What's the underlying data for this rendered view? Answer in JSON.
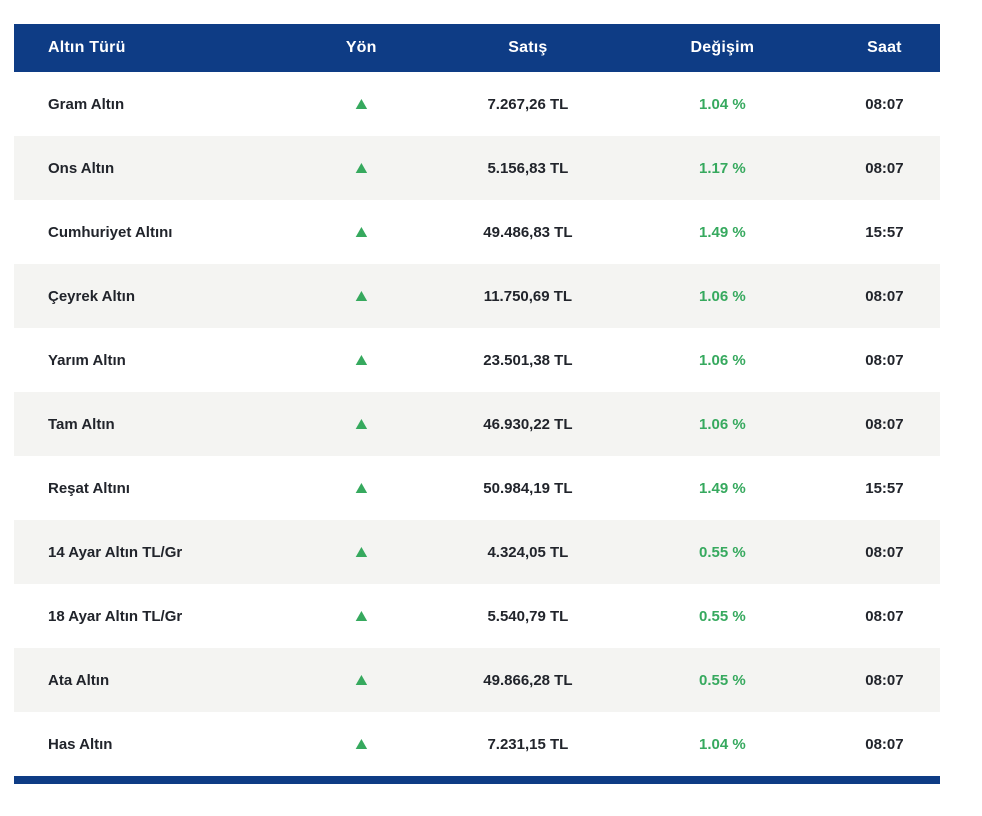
{
  "colors": {
    "header_bg": "#0e3c85",
    "row_alt_bg": "#f4f4f2",
    "positive_green": "#36a95e",
    "text": "#21242b"
  },
  "table": {
    "headers": {
      "type": "Altın Türü",
      "direction": "Yön",
      "price": "Satış",
      "change": "Değişim",
      "time": "Saat"
    },
    "up_icon": "▲",
    "rows": [
      {
        "name": "Gram Altın",
        "direction": "up",
        "price": "7.267,26 TL",
        "change": "1.04 %",
        "time": "08:07"
      },
      {
        "name": "Ons Altın",
        "direction": "up",
        "price": "5.156,83 TL",
        "change": "1.17 %",
        "time": "08:07"
      },
      {
        "name": "Cumhuriyet Altını",
        "direction": "up",
        "price": "49.486,83 TL",
        "change": "1.49 %",
        "time": "15:57"
      },
      {
        "name": "Çeyrek Altın",
        "direction": "up",
        "price": "11.750,69 TL",
        "change": "1.06 %",
        "time": "08:07"
      },
      {
        "name": "Yarım Altın",
        "direction": "up",
        "price": "23.501,38 TL",
        "change": "1.06 %",
        "time": "08:07"
      },
      {
        "name": "Tam Altın",
        "direction": "up",
        "price": "46.930,22 TL",
        "change": "1.06 %",
        "time": "08:07"
      },
      {
        "name": "Reşat Altını",
        "direction": "up",
        "price": "50.984,19 TL",
        "change": "1.49 %",
        "time": "15:57"
      },
      {
        "name": "14 Ayar Altın TL/Gr",
        "direction": "up",
        "price": "4.324,05 TL",
        "change": "0.55 %",
        "time": "08:07"
      },
      {
        "name": "18 Ayar Altın TL/Gr",
        "direction": "up",
        "price": "5.540,79 TL",
        "change": "0.55 %",
        "time": "08:07"
      },
      {
        "name": "Ata Altın",
        "direction": "up",
        "price": "49.866,28 TL",
        "change": "0.55 %",
        "time": "08:07"
      },
      {
        "name": "Has Altın",
        "direction": "up",
        "price": "7.231,15 TL",
        "change": "1.04 %",
        "time": "08:07"
      }
    ]
  }
}
